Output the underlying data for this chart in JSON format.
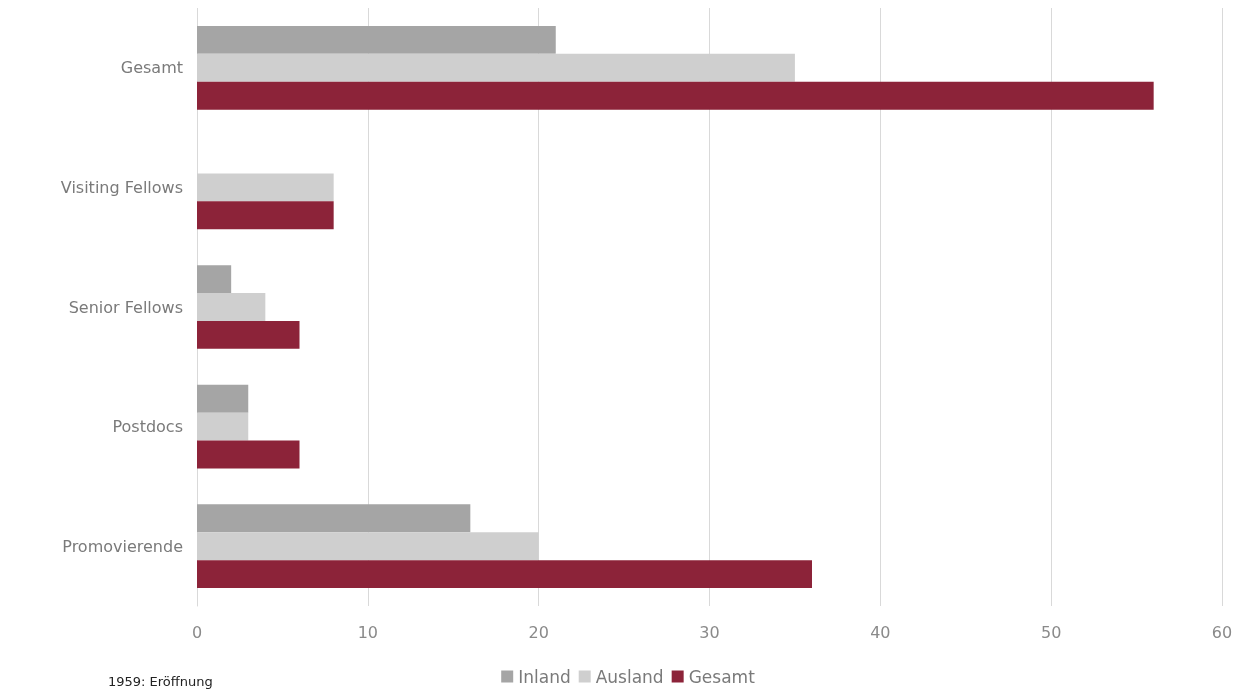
{
  "chart_data": {
    "type": "bar",
    "orientation": "horizontal",
    "categories": [
      "Gesamt",
      "Visiting Fellows",
      "Senior Fellows",
      "Postdocs",
      "Promovierende"
    ],
    "series": [
      {
        "name": "Inland",
        "color": "#a5a5a5",
        "values": [
          21,
          0,
          2,
          3,
          16
        ]
      },
      {
        "name": "Ausland",
        "color": "#cfcfcf",
        "values": [
          35,
          8,
          4,
          3,
          20
        ]
      },
      {
        "name": "Gesamt",
        "color": "#8c2339",
        "values": [
          56,
          8,
          6,
          6,
          36
        ]
      }
    ],
    "xlim": [
      0,
      60
    ],
    "xticks": [
      0,
      10,
      20,
      30,
      40,
      50,
      60
    ],
    "grid": "x",
    "legend": "bottom",
    "annotations": [
      "1959: Eröffnung"
    ]
  }
}
